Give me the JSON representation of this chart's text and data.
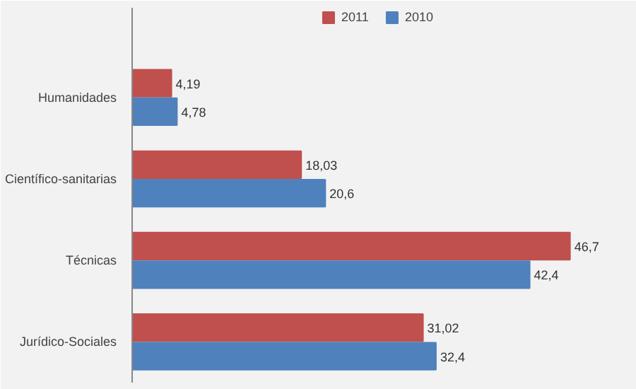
{
  "chart_data": {
    "type": "bar",
    "orientation": "horizontal",
    "categories": [
      "Humanidades",
      "Científico-sanitarias",
      "Técnicas",
      "Jurídico-Sociales"
    ],
    "series": [
      {
        "name": "2011",
        "color": "#c0504d",
        "values": [
          4.19,
          18.03,
          46.7,
          31.02
        ],
        "value_labels": [
          "4,19",
          "18,03",
          "46,7",
          "31,02"
        ]
      },
      {
        "name": "2010",
        "color": "#4f81bd",
        "values": [
          4.78,
          20.6,
          42.4,
          32.4
        ],
        "value_labels": [
          "4,78",
          "20,6",
          "42,4",
          "32,4"
        ]
      }
    ],
    "legend": "top",
    "grid": false
  }
}
